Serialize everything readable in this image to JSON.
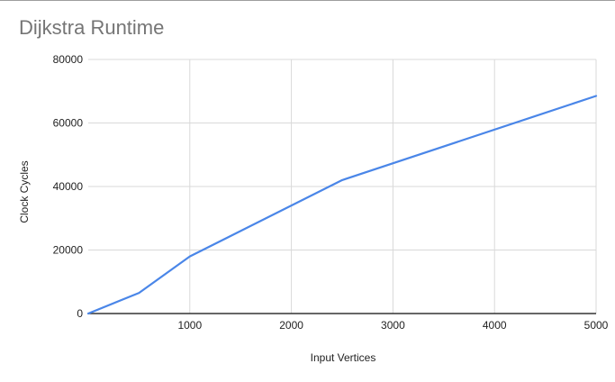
{
  "chart_data": {
    "type": "line",
    "title": "Dijkstra Runtime",
    "xlabel": "Input Vertices",
    "ylabel": "Clock Cycles",
    "xlim": [
      0,
      5000
    ],
    "ylim": [
      0,
      80000
    ],
    "x_ticks": [
      1000,
      2000,
      3000,
      4000,
      5000
    ],
    "y_ticks": [
      0,
      20000,
      40000,
      60000,
      80000
    ],
    "grid": true,
    "legend": "none",
    "series": [
      {
        "color": "#4a86e8",
        "points": [
          {
            "x": 0,
            "y": 0
          },
          {
            "x": 500,
            "y": 6500
          },
          {
            "x": 1000,
            "y": 18000
          },
          {
            "x": 2500,
            "y": 42000
          },
          {
            "x": 5000,
            "y": 68500
          }
        ]
      }
    ]
  }
}
